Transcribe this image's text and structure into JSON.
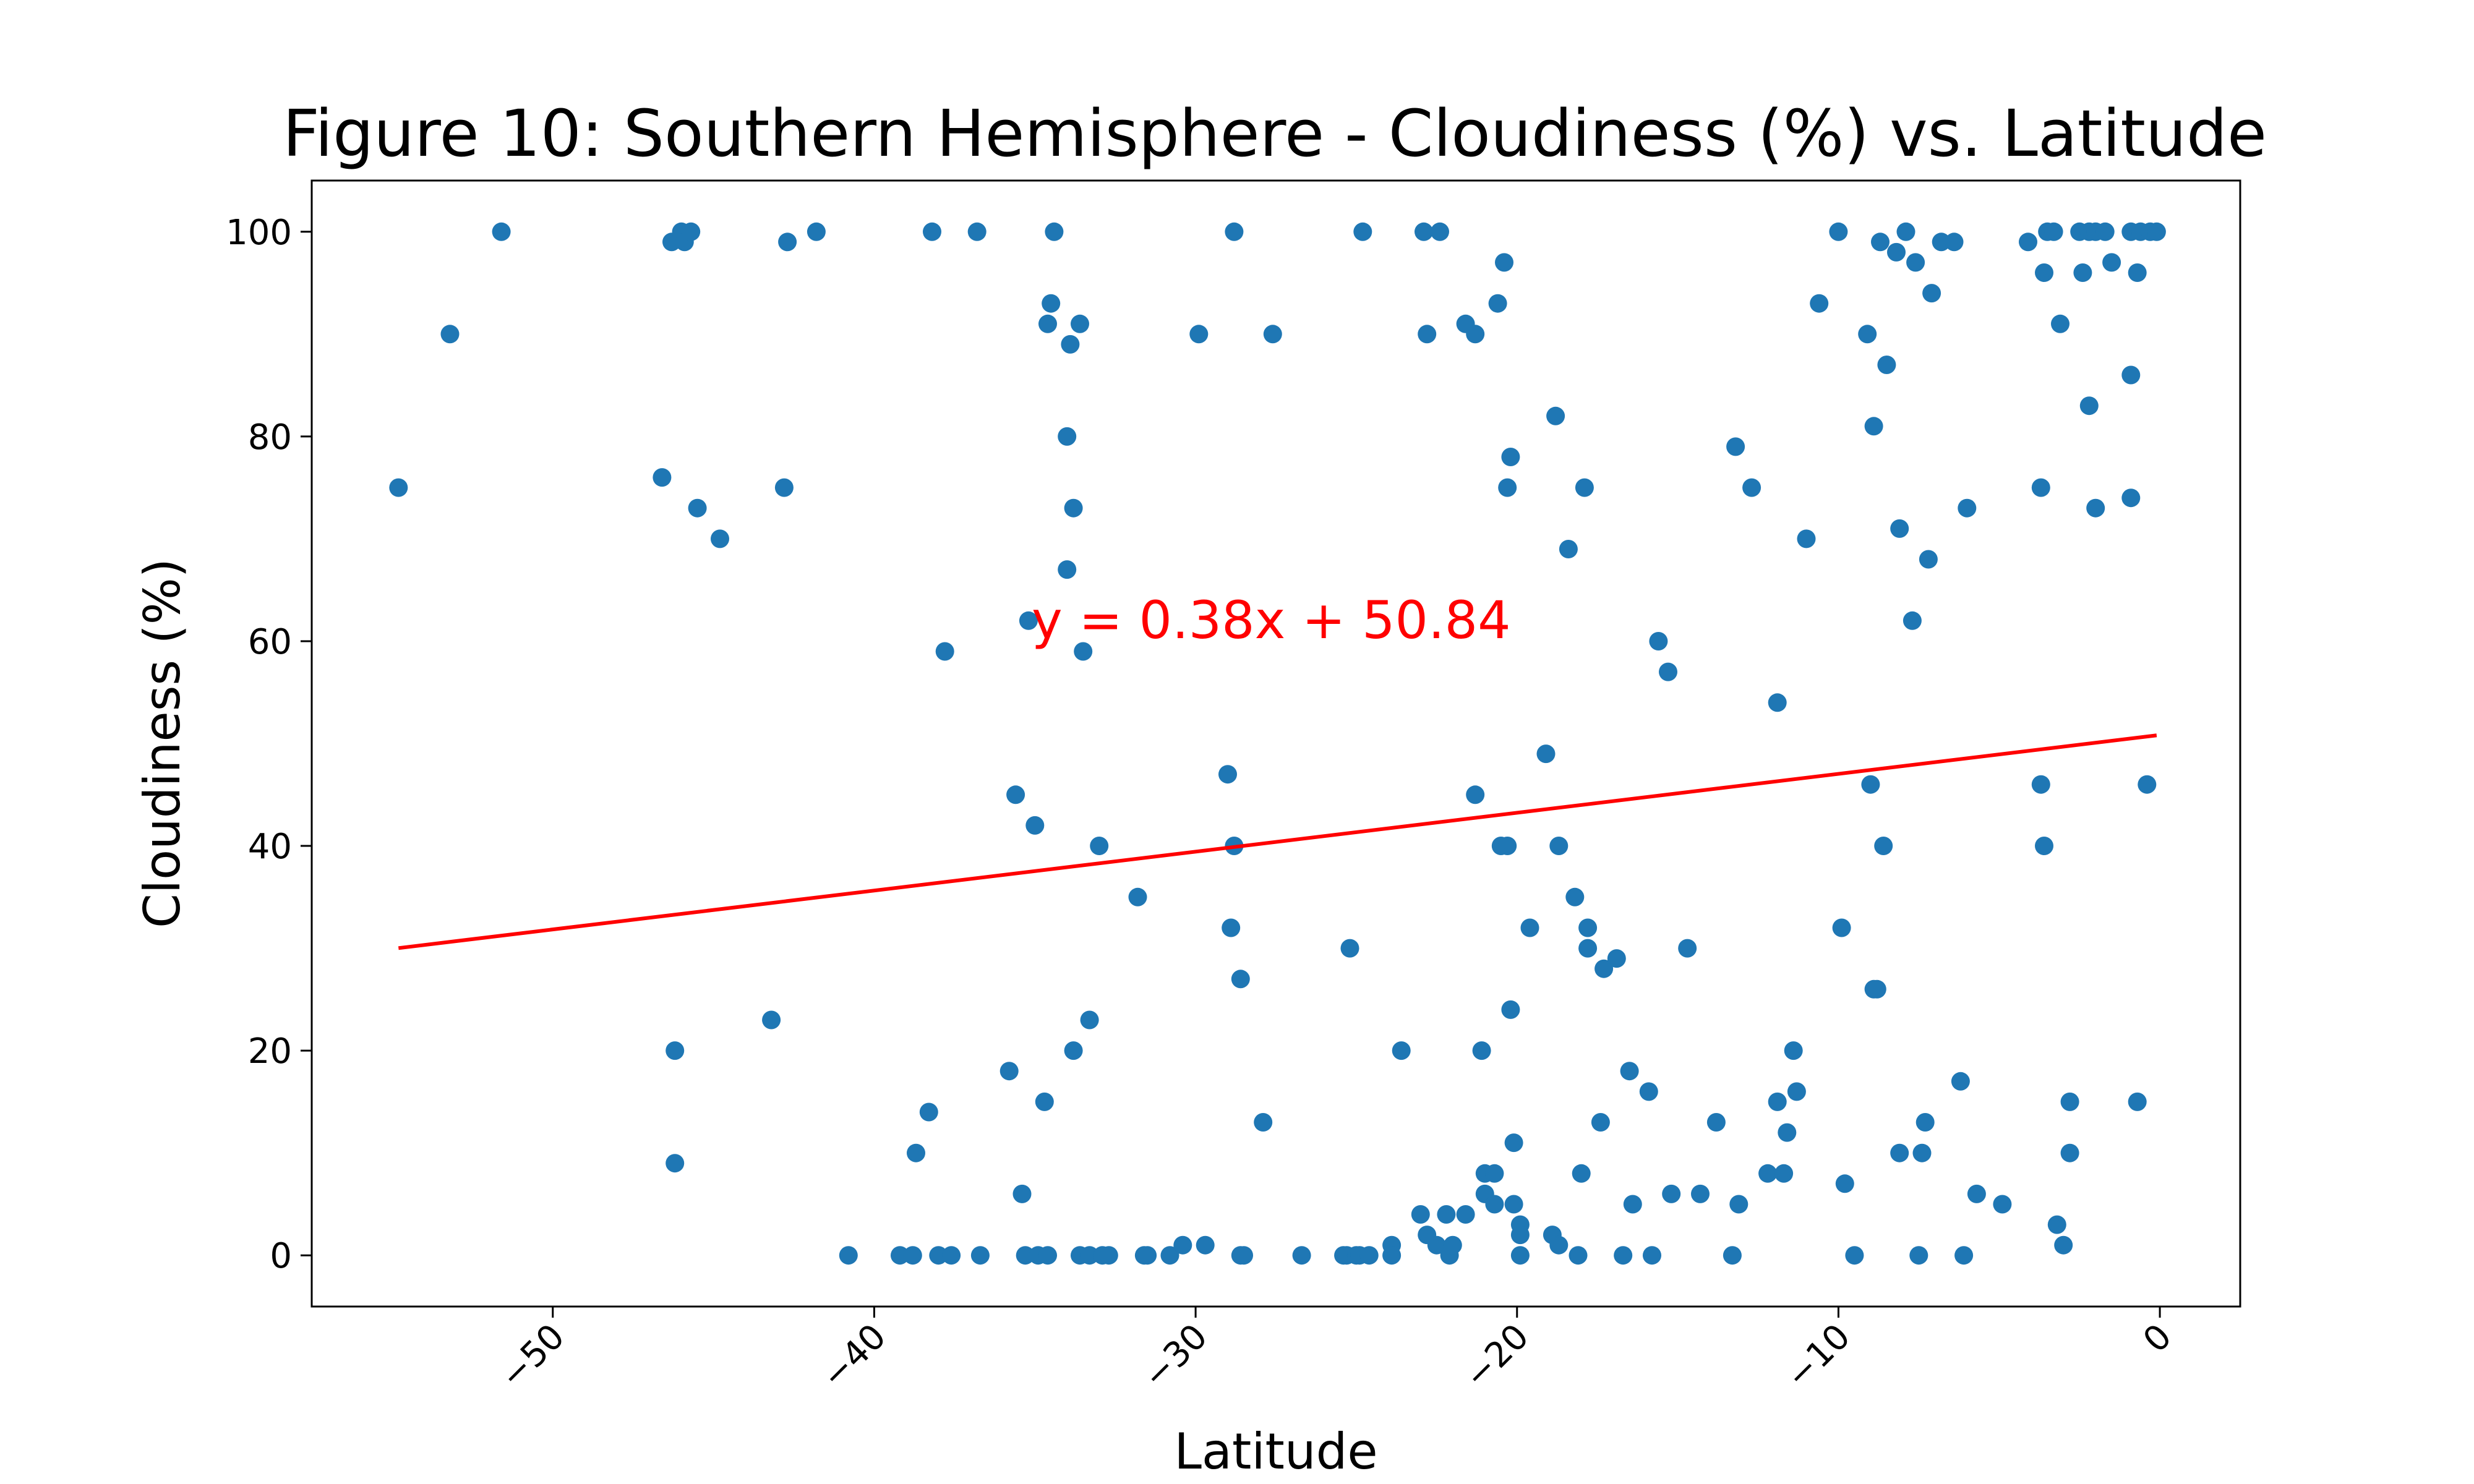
{
  "chart_data": {
    "type": "scatter",
    "title": "Figure 10: Southern Hemisphere - Cloudiness (%) vs. Latitude",
    "xlabel": "Latitude",
    "ylabel": "Cloudiness (%)",
    "xlim": [
      -57.5,
      2.5
    ],
    "ylim": [
      -5,
      105
    ],
    "xticks": [
      -50,
      -40,
      -30,
      -20,
      -10,
      0
    ],
    "xtick_labels": [
      "−50",
      "−40",
      "−30",
      "−20",
      "−10",
      "0"
    ],
    "yticks": [
      0,
      20,
      40,
      60,
      80,
      100
    ],
    "ytick_labels": [
      "0",
      "20",
      "40",
      "60",
      "80",
      "100"
    ],
    "grid": false,
    "marker_color": "#1f77b4",
    "regression": {
      "slope": 0.38,
      "intercept": 50.84,
      "x_range": [
        -54.8,
        -0.1
      ],
      "color": "#ff0000",
      "equation_label": "y = 0.38x + 50.84",
      "label_at": [
        -35.1,
        60.3
      ]
    },
    "points": [
      [
        -54.8,
        75
      ],
      [
        -53.2,
        90
      ],
      [
        -51.6,
        100
      ],
      [
        -46.6,
        76
      ],
      [
        -46.3,
        99
      ],
      [
        -46.2,
        20
      ],
      [
        -46.2,
        9
      ],
      [
        -46.0,
        100
      ],
      [
        -45.9,
        99
      ],
      [
        -45.7,
        100
      ],
      [
        -45.5,
        73
      ],
      [
        -44.8,
        70
      ],
      [
        -43.2,
        23
      ],
      [
        -42.8,
        75
      ],
      [
        -42.7,
        99
      ],
      [
        -41.8,
        100
      ],
      [
        -40.8,
        0
      ],
      [
        -39.2,
        0
      ],
      [
        -38.8,
        0
      ],
      [
        -38.7,
        10
      ],
      [
        -38.3,
        14
      ],
      [
        -38.2,
        100
      ],
      [
        -38.0,
        0
      ],
      [
        -37.8,
        59
      ],
      [
        -37.6,
        0
      ],
      [
        -36.8,
        100
      ],
      [
        -36.7,
        0
      ],
      [
        -35.8,
        18
      ],
      [
        -35.6,
        45
      ],
      [
        -35.4,
        6
      ],
      [
        -35.3,
        0
      ],
      [
        -35.2,
        62
      ],
      [
        -35.0,
        42
      ],
      [
        -34.9,
        0
      ],
      [
        -34.7,
        15
      ],
      [
        -34.6,
        0
      ],
      [
        -34.6,
        91
      ],
      [
        -34.5,
        93
      ],
      [
        -34.4,
        100
      ],
      [
        -34.0,
        80
      ],
      [
        -34.0,
        67
      ],
      [
        -33.9,
        89
      ],
      [
        -33.8,
        20
      ],
      [
        -33.8,
        73
      ],
      [
        -33.6,
        91
      ],
      [
        -33.6,
        0
      ],
      [
        -33.5,
        59
      ],
      [
        -33.3,
        23
      ],
      [
        -33.3,
        0
      ],
      [
        -33.0,
        40
      ],
      [
        -32.9,
        0
      ],
      [
        -32.7,
        0
      ],
      [
        -31.8,
        35
      ],
      [
        -31.6,
        0
      ],
      [
        -31.5,
        0
      ],
      [
        -30.8,
        0
      ],
      [
        -30.4,
        1
      ],
      [
        -29.9,
        90
      ],
      [
        -29.7,
        1
      ],
      [
        -29.0,
        47
      ],
      [
        -28.9,
        32
      ],
      [
        -28.8,
        100
      ],
      [
        -28.8,
        40
      ],
      [
        -28.6,
        27
      ],
      [
        -28.6,
        0
      ],
      [
        -28.5,
        0
      ],
      [
        -27.9,
        13
      ],
      [
        -27.6,
        90
      ],
      [
        -26.7,
        0
      ],
      [
        -25.4,
        0
      ],
      [
        -25.3,
        0
      ],
      [
        -25.2,
        30
      ],
      [
        -25.0,
        0
      ],
      [
        -24.9,
        0
      ],
      [
        -24.8,
        100
      ],
      [
        -24.6,
        0
      ],
      [
        -23.9,
        1
      ],
      [
        -23.9,
        0
      ],
      [
        -23.6,
        20
      ],
      [
        -23.0,
        4
      ],
      [
        -22.9,
        100
      ],
      [
        -22.8,
        2
      ],
      [
        -22.8,
        90
      ],
      [
        -22.5,
        1
      ],
      [
        -22.4,
        100
      ],
      [
        -22.2,
        4
      ],
      [
        -22.1,
        0
      ],
      [
        -22.0,
        1
      ],
      [
        -21.6,
        4
      ],
      [
        -21.6,
        91
      ],
      [
        -21.3,
        45
      ],
      [
        -21.3,
        90
      ],
      [
        -21.1,
        20
      ],
      [
        -21.0,
        8
      ],
      [
        -21.0,
        6
      ],
      [
        -20.7,
        8
      ],
      [
        -20.7,
        5
      ],
      [
        -20.6,
        93
      ],
      [
        -20.5,
        40
      ],
      [
        -20.4,
        97
      ],
      [
        -20.3,
        40
      ],
      [
        -20.3,
        75
      ],
      [
        -20.2,
        24
      ],
      [
        -20.2,
        78
      ],
      [
        -20.1,
        11
      ],
      [
        -20.1,
        5
      ],
      [
        -19.9,
        3
      ],
      [
        -19.9,
        2
      ],
      [
        -19.9,
        0
      ],
      [
        -19.6,
        32
      ],
      [
        -19.1,
        49
      ],
      [
        -18.9,
        2
      ],
      [
        -18.8,
        82
      ],
      [
        -18.7,
        1
      ],
      [
        -18.7,
        40
      ],
      [
        -18.4,
        69
      ],
      [
        -18.2,
        35
      ],
      [
        -18.1,
        0
      ],
      [
        -18.0,
        8
      ],
      [
        -17.9,
        75
      ],
      [
        -17.8,
        32
      ],
      [
        -17.8,
        30
      ],
      [
        -17.4,
        13
      ],
      [
        -17.3,
        28
      ],
      [
        -16.9,
        29
      ],
      [
        -16.7,
        0
      ],
      [
        -16.5,
        18
      ],
      [
        -16.4,
        5
      ],
      [
        -15.9,
        16
      ],
      [
        -15.8,
        0
      ],
      [
        -15.6,
        60
      ],
      [
        -15.3,
        57
      ],
      [
        -15.2,
        6
      ],
      [
        -14.7,
        30
      ],
      [
        -14.3,
        6
      ],
      [
        -13.8,
        13
      ],
      [
        -13.3,
        0
      ],
      [
        -13.2,
        79
      ],
      [
        -13.1,
        5
      ],
      [
        -12.7,
        75
      ],
      [
        -12.2,
        8
      ],
      [
        -11.9,
        15
      ],
      [
        -11.9,
        54
      ],
      [
        -11.7,
        8
      ],
      [
        -11.6,
        12
      ],
      [
        -11.4,
        20
      ],
      [
        -11.3,
        16
      ],
      [
        -11.0,
        70
      ],
      [
        -10.6,
        93
      ],
      [
        -10.0,
        100
      ],
      [
        -9.9,
        32
      ],
      [
        -9.8,
        7
      ],
      [
        -9.5,
        0
      ],
      [
        -9.1,
        90
      ],
      [
        -9.0,
        46
      ],
      [
        -8.9,
        81
      ],
      [
        -8.9,
        26
      ],
      [
        -8.8,
        26
      ],
      [
        -8.7,
        99
      ],
      [
        -8.6,
        40
      ],
      [
        -8.5,
        87
      ],
      [
        -8.2,
        98
      ],
      [
        -8.1,
        71
      ],
      [
        -8.1,
        10
      ],
      [
        -7.9,
        100
      ],
      [
        -7.7,
        62
      ],
      [
        -7.6,
        97
      ],
      [
        -7.5,
        0
      ],
      [
        -7.4,
        10
      ],
      [
        -7.3,
        13
      ],
      [
        -7.2,
        68
      ],
      [
        -7.1,
        94
      ],
      [
        -6.8,
        99
      ],
      [
        -6.4,
        99
      ],
      [
        -6.2,
        17
      ],
      [
        -6.1,
        0
      ],
      [
        -6.0,
        73
      ],
      [
        -5.7,
        6
      ],
      [
        -4.9,
        5
      ],
      [
        -4.1,
        99
      ],
      [
        -3.7,
        46
      ],
      [
        -3.7,
        75
      ],
      [
        -3.6,
        96
      ],
      [
        -3.6,
        40
      ],
      [
        -3.5,
        100
      ],
      [
        -3.3,
        100
      ],
      [
        -3.2,
        3
      ],
      [
        -3.1,
        91
      ],
      [
        -3.0,
        1
      ],
      [
        -2.8,
        15
      ],
      [
        -2.8,
        10
      ],
      [
        -2.5,
        100
      ],
      [
        -2.4,
        96
      ],
      [
        -2.2,
        100
      ],
      [
        -2.2,
        83
      ],
      [
        -2.0,
        73
      ],
      [
        -2.0,
        100
      ],
      [
        -1.7,
        100
      ],
      [
        -1.5,
        97
      ],
      [
        -0.9,
        86
      ],
      [
        -0.9,
        100
      ],
      [
        -0.9,
        74
      ],
      [
        -0.7,
        15
      ],
      [
        -0.7,
        96
      ],
      [
        -0.6,
        100
      ],
      [
        -0.4,
        46
      ],
      [
        -0.3,
        100
      ],
      [
        -0.1,
        100
      ]
    ]
  }
}
